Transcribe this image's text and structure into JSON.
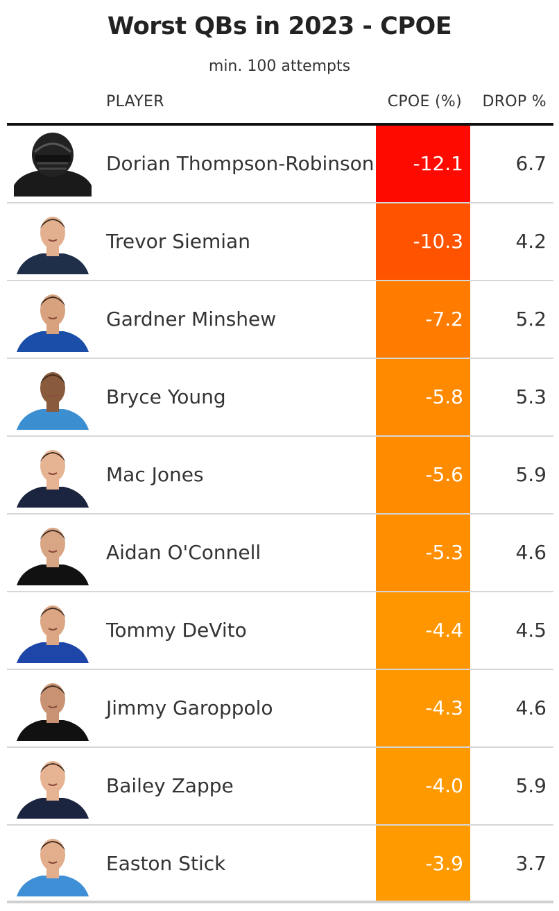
{
  "title": "Worst QBs in 2023 - CPOE",
  "subtitle": "min. 100 attempts",
  "columns": {
    "player": "PLAYER",
    "cpoe": "CPOE (%)",
    "drop": "DROP %"
  },
  "colors": {
    "cpoe_most_negative": "#ff0a00",
    "cpoe_least_negative": "#ff9a00"
  },
  "chart_data": {
    "type": "table",
    "title": "Worst QBs in 2023 - CPOE",
    "subtitle": "min. 100 attempts",
    "columns": [
      "PLAYER",
      "CPOE (%)",
      "DROP %"
    ],
    "rows": [
      {
        "player": "Dorian Thompson-Robinson",
        "cpoe": "-12.1",
        "drop": "6.7",
        "jersey": "#1a1a1a",
        "skin": "#000000",
        "helmet": true
      },
      {
        "player": "Trevor Siemian",
        "cpoe": "-10.3",
        "drop": "4.2",
        "jersey": "#1f2f4a",
        "skin": "#e2b08f"
      },
      {
        "player": "Gardner Minshew",
        "cpoe": "-7.2",
        "drop": "5.2",
        "jersey": "#1a4ea8",
        "skin": "#d9a27f"
      },
      {
        "player": "Bryce Young",
        "cpoe": "-5.8",
        "drop": "5.3",
        "jersey": "#3b8fd1",
        "skin": "#8a5a3c"
      },
      {
        "player": "Mac Jones",
        "cpoe": "-5.6",
        "drop": "5.9",
        "jersey": "#1c2540",
        "skin": "#e6b493"
      },
      {
        "player": "Aidan O'Connell",
        "cpoe": "-5.3",
        "drop": "4.6",
        "jersey": "#111111",
        "skin": "#d8a585"
      },
      {
        "player": "Tommy DeVito",
        "cpoe": "-4.4",
        "drop": "4.5",
        "jersey": "#1d46a8",
        "skin": "#dca583"
      },
      {
        "player": "Jimmy Garoppolo",
        "cpoe": "-4.3",
        "drop": "4.6",
        "jersey": "#111111",
        "skin": "#c99373"
      },
      {
        "player": "Bailey Zappe",
        "cpoe": "-4.0",
        "drop": "5.9",
        "jersey": "#1c2540",
        "skin": "#e6b493"
      },
      {
        "player": "Easton Stick",
        "cpoe": "-3.9",
        "drop": "3.7",
        "jersey": "#3e8fd6",
        "skin": "#e2ae8c"
      }
    ]
  }
}
